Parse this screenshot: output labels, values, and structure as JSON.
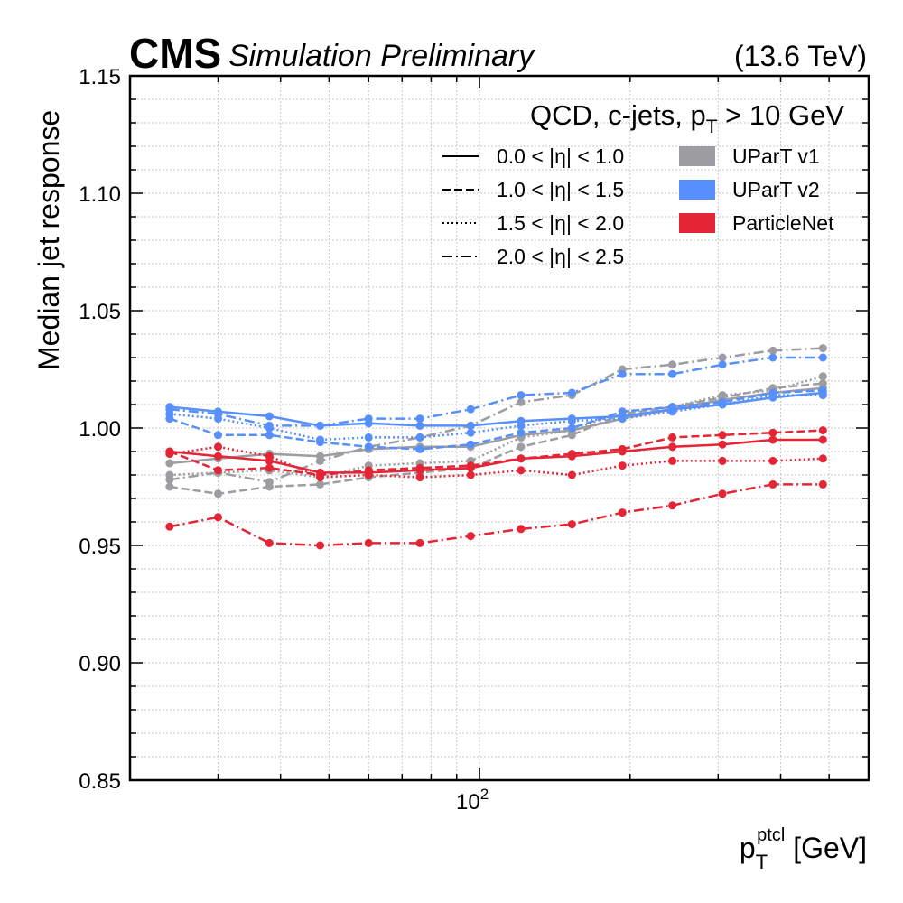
{
  "header": {
    "experiment": "CMS",
    "status": "Simulation Preliminary",
    "energy": "(13.6 TeV)"
  },
  "chart_data": {
    "type": "line",
    "title": "QCD, c-jets, p_T > 10 GeV",
    "title_parts": {
      "prefix": "QCD, c-jets, p",
      "sub": "T",
      "suffix": " > 10 GeV"
    },
    "xlabel": "p_T^ptcl [GeV]",
    "xlabel_parts": {
      "base": "p",
      "sub": "T",
      "sup": "ptcl",
      "suffix": " [GeV]"
    },
    "ylabel": "Median jet response",
    "x_scale": "log",
    "xlim": [
      20,
      600
    ],
    "ylim": [
      0.85,
      1.15
    ],
    "y_ticks": [
      "0.85",
      "0.90",
      "0.95",
      "1.00",
      "1.05",
      "1.10",
      "1.15"
    ],
    "x_tick_labels": [
      {
        "value": 100,
        "base": "10",
        "exp": "2"
      }
    ],
    "grid": true,
    "legend_position": "top-right",
    "legend_eta": [
      {
        "label": "0.0 < |η| < 1.0",
        "dash": "solid"
      },
      {
        "label": "1.0 < |η| < 1.5",
        "dash": "dashed"
      },
      {
        "label": "1.5 < |η| < 2.0",
        "dash": "dotted"
      },
      {
        "label": "2.0 < |η| < 2.5",
        "dash": "dashdot"
      }
    ],
    "legend_algo": [
      {
        "label": "UParT v1",
        "color": "#9c9ca1"
      },
      {
        "label": "UParT v2",
        "color": "#5790fc"
      },
      {
        "label": "ParticleNet",
        "color": "#e42536"
      }
    ],
    "x": [
      24,
      30,
      38,
      48,
      60,
      76,
      96,
      121,
      153,
      193,
      243,
      306,
      386,
      486
    ],
    "series": [
      {
        "algo": "UParT v1",
        "eta_bin": "0.0 < |η| < 1.0",
        "color": "#9c9ca1",
        "dash": "solid",
        "values": [
          0.985,
          0.987,
          0.989,
          0.988,
          0.991,
          0.992,
          0.992,
          0.997,
          0.999,
          1.004,
          1.008,
          1.012,
          1.015,
          1.017
        ]
      },
      {
        "algo": "UParT v1",
        "eta_bin": "1.0 < |η| < 1.5",
        "color": "#9c9ca1",
        "dash": "dashed",
        "values": [
          0.975,
          0.972,
          0.975,
          0.976,
          0.979,
          0.981,
          0.983,
          0.992,
          0.997,
          1.006,
          1.009,
          1.013,
          1.017,
          1.019
        ]
      },
      {
        "algo": "UParT v1",
        "eta_bin": "1.5 < |η| < 2.0",
        "color": "#9c9ca1",
        "dash": "dotted",
        "values": [
          0.98,
          0.981,
          0.982,
          0.979,
          0.984,
          0.985,
          0.986,
          0.996,
          0.999,
          1.007,
          1.009,
          1.014,
          1.016,
          1.022
        ]
      },
      {
        "algo": "UParT v1",
        "eta_bin": "2.0 < |η| < 2.5",
        "color": "#9c9ca1",
        "dash": "dashdot",
        "values": [
          0.978,
          0.981,
          0.977,
          0.986,
          0.992,
          0.996,
          1.001,
          1.011,
          1.014,
          1.025,
          1.027,
          1.03,
          1.033,
          1.034
        ]
      },
      {
        "algo": "UParT v2",
        "eta_bin": "0.0 < |η| < 1.0",
        "color": "#5790fc",
        "dash": "solid",
        "values": [
          1.009,
          1.007,
          1.005,
          1.001,
          1.002,
          1.001,
          1.001,
          1.003,
          1.004,
          1.005,
          1.008,
          1.01,
          1.013,
          1.015
        ]
      },
      {
        "algo": "UParT v2",
        "eta_bin": "1.0 < |η| < 1.5",
        "color": "#5790fc",
        "dash": "dashed",
        "values": [
          1.004,
          0.997,
          0.997,
          0.994,
          0.992,
          0.991,
          0.993,
          0.998,
          1.0,
          1.007,
          1.009,
          1.011,
          1.015,
          1.016
        ]
      },
      {
        "algo": "UParT v2",
        "eta_bin": "1.5 < |η| < 2.0",
        "color": "#5790fc",
        "dash": "dotted",
        "values": [
          1.006,
          1.004,
          1.0,
          0.995,
          0.996,
          0.996,
          0.998,
          1.001,
          1.003,
          1.004,
          1.007,
          1.01,
          1.014,
          1.014
        ]
      },
      {
        "algo": "UParT v2",
        "eta_bin": "2.0 < |η| < 2.5",
        "color": "#5790fc",
        "dash": "dashdot",
        "values": [
          1.008,
          1.006,
          1.001,
          1.001,
          1.004,
          1.004,
          1.008,
          1.014,
          1.015,
          1.023,
          1.023,
          1.027,
          1.03,
          1.03
        ]
      },
      {
        "algo": "ParticleNet",
        "eta_bin": "0.0 < |η| < 1.0",
        "color": "#e42536",
        "dash": "solid",
        "values": [
          0.99,
          0.988,
          0.986,
          0.981,
          0.981,
          0.982,
          0.983,
          0.987,
          0.988,
          0.99,
          0.992,
          0.993,
          0.995,
          0.995
        ]
      },
      {
        "algo": "ParticleNet",
        "eta_bin": "1.0 < |η| < 1.5",
        "color": "#e42536",
        "dash": "dashed",
        "values": [
          0.99,
          0.982,
          0.983,
          0.98,
          0.982,
          0.983,
          0.984,
          0.987,
          0.989,
          0.991,
          0.996,
          0.997,
          0.998,
          0.999
        ]
      },
      {
        "algo": "ParticleNet",
        "eta_bin": "1.5 < |η| < 2.0",
        "color": "#e42536",
        "dash": "dotted",
        "values": [
          0.989,
          0.992,
          0.988,
          0.979,
          0.98,
          0.979,
          0.98,
          0.982,
          0.98,
          0.984,
          0.986,
          0.986,
          0.986,
          0.987
        ]
      },
      {
        "algo": "ParticleNet",
        "eta_bin": "2.0 < |η| < 2.5",
        "color": "#e42536",
        "dash": "dashdot",
        "values": [
          0.958,
          0.962,
          0.951,
          0.95,
          0.951,
          0.951,
          0.954,
          0.957,
          0.959,
          0.964,
          0.967,
          0.972,
          0.976,
          0.976
        ]
      }
    ]
  }
}
